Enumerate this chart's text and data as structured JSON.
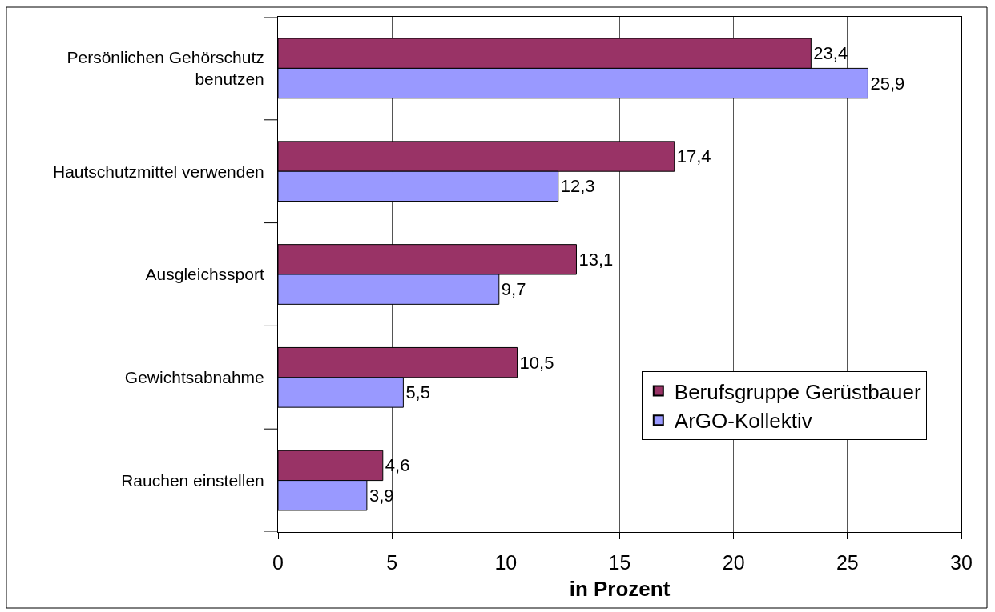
{
  "chart_data": {
    "type": "bar",
    "orientation": "horizontal",
    "xlabel": "in Prozent",
    "categories": [
      "Persönlichen Gehörschutz benutzen",
      "Hautschutzmittel verwenden",
      "Ausgleichssport",
      "Gewichtsabnahme",
      "Rauchen einstellen"
    ],
    "series": [
      {
        "name": "Berufsgruppe Gerüstbauer",
        "color": "#993366",
        "values": [
          23.4,
          17.4,
          13.1,
          10.5,
          4.6
        ],
        "value_labels": [
          "23,4",
          "17,4",
          "13,1",
          "10,5",
          "4,6"
        ]
      },
      {
        "name": "ArGO-Kollektiv",
        "color": "#9999ff",
        "values": [
          25.9,
          12.3,
          9.7,
          5.5,
          3.9
        ],
        "value_labels": [
          "25,9",
          "12,3",
          "9,7",
          "5,5",
          "3,9"
        ]
      }
    ],
    "xlim": [
      0,
      30
    ],
    "xticks": [
      0,
      5,
      10,
      15,
      20,
      25,
      30
    ],
    "grid": "x",
    "legend": "bottom right"
  }
}
